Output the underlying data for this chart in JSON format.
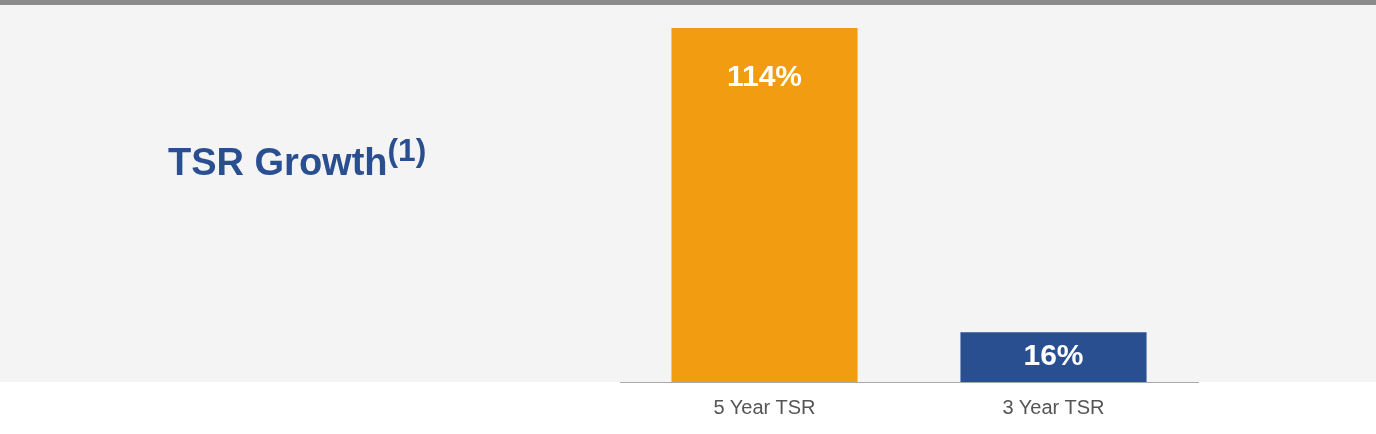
{
  "chart_data": {
    "type": "bar",
    "title": "TSR Growth$^{(1)}$",
    "categories": [
      "5 Year TSR",
      "3 Year TSR"
    ],
    "values": [
      114,
      16
    ],
    "colors": [
      "#f29c12",
      "#2a4f91"
    ],
    "value_labels": [
      "114%",
      "16%"
    ],
    "grid": false,
    "legend": false
  }
}
